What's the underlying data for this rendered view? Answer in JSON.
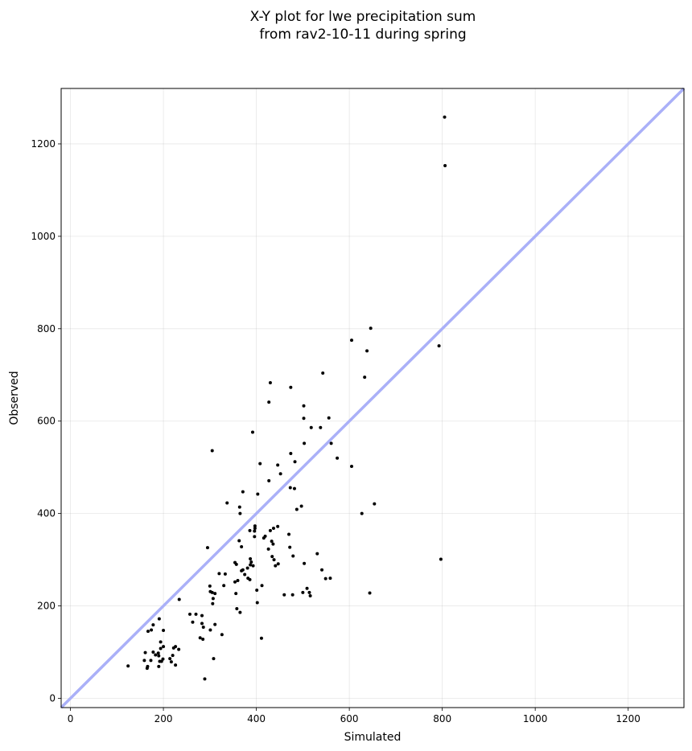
{
  "chart_data": {
    "type": "scatter",
    "title_lines": [
      "X-Y plot for lwe precipitation sum",
      "from rav2-10-11 during spring"
    ],
    "xlabel": "Simulated",
    "ylabel": "Observed",
    "xlim": [
      -20,
      1320
    ],
    "ylim": [
      -20,
      1320
    ],
    "xticks": [
      0,
      200,
      400,
      600,
      800,
      1000,
      1200
    ],
    "yticks": [
      0,
      200,
      400,
      600,
      800,
      1000,
      1200
    ],
    "grid": true,
    "reference_line": {
      "from": [
        -20,
        -20
      ],
      "to": [
        1320,
        1320
      ],
      "color": "#aab0f8"
    },
    "point_color": "#000000",
    "points": [
      [
        805,
        1258
      ],
      [
        806,
        1153
      ],
      [
        793,
        763
      ],
      [
        797,
        301
      ],
      [
        646,
        801
      ],
      [
        605,
        775
      ],
      [
        638,
        752
      ],
      [
        633,
        695
      ],
      [
        654,
        421
      ],
      [
        627,
        400
      ],
      [
        644,
        228
      ],
      [
        605,
        502
      ],
      [
        543,
        704
      ],
      [
        474,
        673
      ],
      [
        430,
        683
      ],
      [
        427,
        641
      ],
      [
        502,
        633
      ],
      [
        502,
        606
      ],
      [
        556,
        607
      ],
      [
        538,
        586
      ],
      [
        518,
        586
      ],
      [
        392,
        576
      ],
      [
        503,
        552
      ],
      [
        561,
        552
      ],
      [
        574,
        520
      ],
      [
        305,
        536
      ],
      [
        474,
        530
      ],
      [
        483,
        512
      ],
      [
        408,
        508
      ],
      [
        446,
        505
      ],
      [
        452,
        486
      ],
      [
        427,
        471
      ],
      [
        371,
        447
      ],
      [
        403,
        442
      ],
      [
        473,
        456
      ],
      [
        482,
        454
      ],
      [
        497,
        416
      ],
      [
        487,
        409
      ],
      [
        337,
        423
      ],
      [
        364,
        414
      ],
      [
        365,
        400
      ],
      [
        397,
        373
      ],
      [
        397,
        368
      ],
      [
        396,
        362
      ],
      [
        446,
        372
      ],
      [
        437,
        368
      ],
      [
        430,
        363
      ],
      [
        386,
        363
      ],
      [
        419,
        351
      ],
      [
        416,
        347
      ],
      [
        470,
        355
      ],
      [
        433,
        340
      ],
      [
        396,
        350
      ],
      [
        363,
        341
      ],
      [
        368,
        328
      ],
      [
        472,
        327
      ],
      [
        436,
        334
      ],
      [
        426,
        323
      ],
      [
        295,
        326
      ],
      [
        479,
        308
      ],
      [
        531,
        313
      ],
      [
        434,
        307
      ],
      [
        438,
        300
      ],
      [
        387,
        302
      ],
      [
        389,
        295
      ],
      [
        387,
        289
      ],
      [
        354,
        294
      ],
      [
        393,
        287
      ],
      [
        357,
        290
      ],
      [
        381,
        282
      ],
      [
        441,
        287
      ],
      [
        447,
        291
      ],
      [
        371,
        278
      ],
      [
        368,
        276
      ],
      [
        375,
        268
      ],
      [
        320,
        270
      ],
      [
        333,
        269
      ],
      [
        503,
        292
      ],
      [
        541,
        278
      ],
      [
        549,
        259
      ],
      [
        559,
        260
      ],
      [
        354,
        252
      ],
      [
        360,
        255
      ],
      [
        382,
        260
      ],
      [
        386,
        257
      ],
      [
        412,
        244
      ],
      [
        401,
        234
      ],
      [
        509,
        238
      ],
      [
        300,
        243
      ],
      [
        500,
        229
      ],
      [
        514,
        229
      ],
      [
        516,
        222
      ],
      [
        460,
        224
      ],
      [
        478,
        224
      ],
      [
        356,
        227
      ],
      [
        305,
        229
      ],
      [
        301,
        231
      ],
      [
        311,
        227
      ],
      [
        307,
        216
      ],
      [
        306,
        205
      ],
      [
        402,
        207
      ],
      [
        330,
        244
      ],
      [
        234,
        214
      ],
      [
        270,
        182
      ],
      [
        257,
        182
      ],
      [
        358,
        194
      ],
      [
        365,
        186
      ],
      [
        311,
        160
      ],
      [
        283,
        162
      ],
      [
        263,
        165
      ],
      [
        286,
        154
      ],
      [
        301,
        148
      ],
      [
        326,
        138
      ],
      [
        279,
        131
      ],
      [
        283,
        179
      ],
      [
        191,
        172
      ],
      [
        178,
        159
      ],
      [
        174,
        148
      ],
      [
        167,
        145
      ],
      [
        200,
        147
      ],
      [
        285,
        128
      ],
      [
        411,
        130
      ],
      [
        194,
        122
      ],
      [
        200,
        112
      ],
      [
        194,
        108
      ],
      [
        226,
        112
      ],
      [
        222,
        109
      ],
      [
        233,
        106
      ],
      [
        178,
        100
      ],
      [
        161,
        99
      ],
      [
        189,
        98
      ],
      [
        183,
        94
      ],
      [
        190,
        92
      ],
      [
        199,
        85
      ],
      [
        220,
        93
      ],
      [
        214,
        86
      ],
      [
        159,
        82
      ],
      [
        173,
        82
      ],
      [
        192,
        80
      ],
      [
        196,
        80
      ],
      [
        217,
        79
      ],
      [
        226,
        72
      ],
      [
        166,
        69
      ],
      [
        190,
        69
      ],
      [
        165,
        65
      ],
      [
        124,
        70
      ],
      [
        308,
        86
      ],
      [
        289,
        42
      ]
    ]
  }
}
